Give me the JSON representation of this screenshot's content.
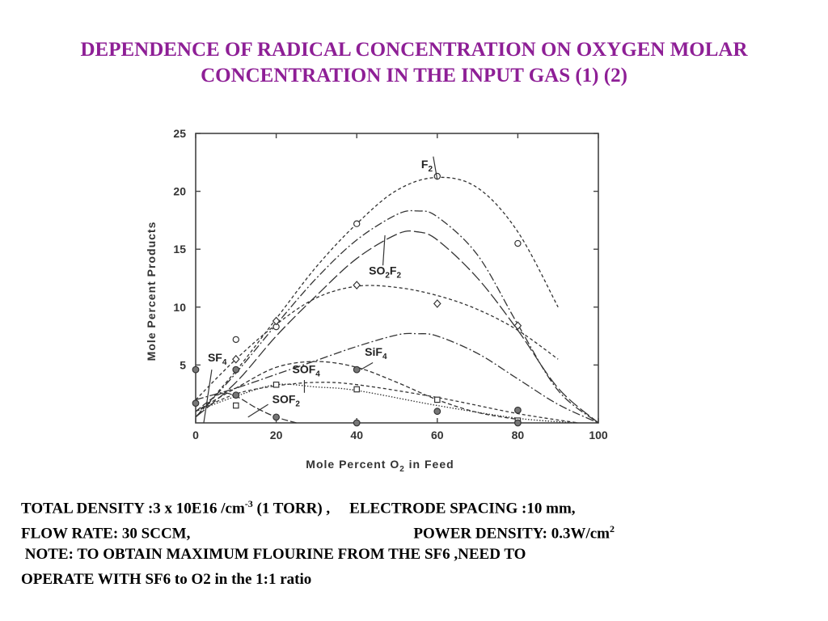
{
  "title_line1": "DEPENDENCE OF RADICAL CONCENTRATION ON  OXYGEN MOLAR",
  "title_line2": "CONCENTRATION IN THE INPUT GAS (1) (2)",
  "chart_data": {
    "type": "line",
    "xlabel": "Mole Percent O",
    "xlabel_sub": "2",
    "xlabel_suffix": " in Feed",
    "ylabel": "Mole Percent Products",
    "xlim": [
      0,
      100
    ],
    "ylim": [
      0,
      25
    ],
    "xticks": [
      0,
      20,
      40,
      60,
      80,
      100
    ],
    "yticks": [
      5,
      10,
      15,
      20,
      25
    ],
    "grid": false,
    "series": [
      {
        "name": "F",
        "name_sub": "2",
        "curve": [
          [
            0,
            0.5
          ],
          [
            10,
            4.5
          ],
          [
            20,
            9
          ],
          [
            30,
            13.5
          ],
          [
            40,
            17.2
          ],
          [
            50,
            20.1
          ],
          [
            60,
            21.2
          ],
          [
            70,
            20.3
          ],
          [
            80,
            16.5
          ],
          [
            90,
            10
          ]
        ],
        "points": [
          [
            10,
            7.2
          ],
          [
            20,
            8.3
          ],
          [
            40,
            17.2
          ],
          [
            60,
            21.3
          ],
          [
            80,
            15.5
          ]
        ],
        "marker": "circle"
      },
      {
        "name": "",
        "curve": [
          [
            0,
            0.5
          ],
          [
            10,
            4.3
          ],
          [
            20,
            8.5
          ],
          [
            30,
            12.5
          ],
          [
            40,
            15.8
          ],
          [
            50,
            18
          ],
          [
            55,
            18.3
          ],
          [
            60,
            17.8
          ],
          [
            70,
            14.5
          ],
          [
            80,
            8.5
          ],
          [
            90,
            2.8
          ],
          [
            100,
            0
          ]
        ],
        "points": [],
        "marker": "none"
      },
      {
        "name": "SO",
        "name_sub": "2",
        "name_suffix": "F",
        "name_sub2": "2",
        "curve": [
          [
            0,
            0.5
          ],
          [
            10,
            3.5
          ],
          [
            20,
            7.5
          ],
          [
            30,
            11
          ],
          [
            40,
            14.2
          ],
          [
            50,
            16.3
          ],
          [
            55,
            16.5
          ],
          [
            60,
            15.8
          ],
          [
            70,
            12.5
          ],
          [
            80,
            8
          ],
          [
            90,
            3
          ],
          [
            100,
            0
          ]
        ],
        "points": [],
        "marker": "none"
      },
      {
        "name": "",
        "curve": [
          [
            0,
            2
          ],
          [
            10,
            5.5
          ],
          [
            20,
            8.5
          ],
          [
            30,
            10.8
          ],
          [
            40,
            11.8
          ],
          [
            50,
            11.7
          ],
          [
            60,
            11
          ],
          [
            70,
            9.8
          ],
          [
            80,
            8
          ],
          [
            90,
            5.5
          ]
        ],
        "points": [
          [
            10,
            5.5
          ],
          [
            20,
            8.8
          ],
          [
            40,
            11.9
          ],
          [
            60,
            10.3
          ],
          [
            80,
            8.4
          ]
        ],
        "marker": "diamond"
      },
      {
        "name": "SiF",
        "name_sub": "4",
        "curve": [
          [
            0,
            2
          ],
          [
            10,
            3
          ],
          [
            20,
            4.2
          ],
          [
            30,
            5.4
          ],
          [
            40,
            6.6
          ],
          [
            50,
            7.6
          ],
          [
            55,
            7.7
          ],
          [
            60,
            7.5
          ],
          [
            70,
            6
          ],
          [
            80,
            3.8
          ],
          [
            90,
            1.6
          ],
          [
            100,
            0
          ]
        ],
        "points": [],
        "marker": "none"
      },
      {
        "name": "SOF",
        "name_sub": "4",
        "curve": [
          [
            0,
            1
          ],
          [
            10,
            3
          ],
          [
            20,
            4.8
          ],
          [
            30,
            5.3
          ],
          [
            40,
            4.8
          ],
          [
            50,
            3.5
          ],
          [
            60,
            2
          ],
          [
            70,
            0.9
          ],
          [
            80,
            0.3
          ]
        ],
        "points": [
          [
            10,
            1.5
          ],
          [
            20,
            3.3
          ],
          [
            40,
            2.9
          ],
          [
            60,
            2
          ],
          [
            80,
            0.2
          ]
        ],
        "marker": "square"
      },
      {
        "name": "",
        "curve": [
          [
            0,
            1
          ],
          [
            10,
            2.5
          ],
          [
            20,
            3.2
          ],
          [
            30,
            3.5
          ],
          [
            40,
            3.3
          ],
          [
            60,
            2.2
          ],
          [
            80,
            0.8
          ],
          [
            95,
            0
          ]
        ],
        "points": [
          [
            10,
            4.6
          ],
          [
            40,
            4.6
          ],
          [
            60,
            1
          ],
          [
            80,
            1.1
          ]
        ],
        "marker": "circle-dot"
      },
      {
        "name": "",
        "curve": [
          [
            0,
            1
          ],
          [
            10,
            2.3
          ],
          [
            20,
            3.3
          ],
          [
            30,
            3.1
          ],
          [
            40,
            2.8
          ],
          [
            60,
            1.5
          ],
          [
            80,
            0.4
          ],
          [
            95,
            0
          ]
        ],
        "points": [],
        "marker": "none"
      },
      {
        "name": "SOF",
        "name_sub": "2",
        "curve": [
          [
            0,
            1
          ],
          [
            6,
            2.5
          ],
          [
            10,
            2.3
          ],
          [
            15,
            1.3
          ],
          [
            20,
            0.5
          ],
          [
            25,
            0
          ]
        ],
        "points": [
          [
            0,
            1.7
          ],
          [
            10,
            2.4
          ],
          [
            20,
            0.5
          ],
          [
            40,
            0
          ],
          [
            80,
            0
          ]
        ],
        "marker": "circle-dot"
      },
      {
        "name": "SF",
        "name_sub": "4",
        "curve": [],
        "points": [
          [
            0,
            4.6
          ]
        ],
        "marker": "circle-dot"
      }
    ]
  },
  "notes": {
    "line1_a": "TOTAL DENSITY :3 x 10E16 /cm",
    "line1_sup": "-3",
    "line1_b": " (1 TORR) ,",
    "line1_c": "ELECTRODE SPACING :10 mm,",
    "line2_a": "FLOW RATE: 30 SCCM,",
    "line2_b": "POWER DENSITY: 0.3W/cm",
    "line2_sup": "2",
    "line3": " NOTE: TO OBTAIN MAXIMUM FLOURINE FROM THE SF6 ,NEED TO",
    "line4": "OPERATE WITH SF6 to O2 in the 1:1 ratio"
  }
}
